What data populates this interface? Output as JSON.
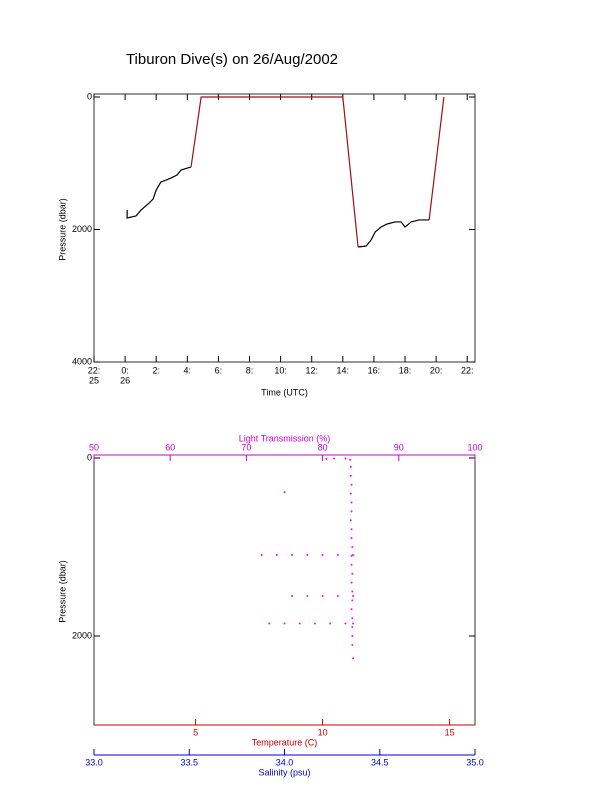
{
  "chart_data": [
    {
      "type": "line",
      "title": "Tiburon Dive(s) on 26/Aug/2002",
      "xlabel": "Time (UTC)",
      "ylabel": "Pressure (dbar)",
      "xlim": [
        -2,
        22.5
      ],
      "ylim": [
        4000,
        0
      ],
      "xticks": [
        {
          "value": -2,
          "label": "22:",
          "sublabel": "25"
        },
        {
          "value": 0,
          "label": "0:",
          "sublabel": "26"
        },
        {
          "value": 2,
          "label": "2:"
        },
        {
          "value": 4,
          "label": "4:"
        },
        {
          "value": 6,
          "label": "6:"
        },
        {
          "value": 8,
          "label": "8:"
        },
        {
          "value": 10,
          "label": "10:"
        },
        {
          "value": 12,
          "label": "12:"
        },
        {
          "value": 14,
          "label": "14:"
        },
        {
          "value": 16,
          "label": "16:"
        },
        {
          "value": 18,
          "label": "18:"
        },
        {
          "value": 20,
          "label": "20:"
        },
        {
          "value": 22,
          "label": "22:"
        }
      ],
      "yticks": [
        0,
        2000,
        4000
      ],
      "series": [
        {
          "color": "#000000",
          "x": [
            0.13,
            0.13,
            0.7,
            1.03,
            1.48,
            1.8,
            2.0,
            2.3,
            2.64,
            2.96,
            3.34,
            3.6,
            4.0,
            4.24,
            null,
            14.98,
            15.5,
            15.82,
            16.08,
            16.46,
            16.85,
            17.36,
            17.75,
            18.0,
            18.4,
            18.9,
            19.55
          ],
          "values": [
            1705,
            1826,
            1796,
            1705,
            1615,
            1540,
            1404,
            1283,
            1253,
            1222,
            1177,
            1102,
            1072,
            1057,
            null,
            2264,
            2249,
            2158,
            2037,
            1962,
            1917,
            1886,
            1886,
            1962,
            1886,
            1856,
            1856
          ]
        },
        {
          "color": "#a01010",
          "x": [
            4.24,
            4.89,
            14.0,
            14.98,
            null,
            19.55,
            20.5
          ],
          "values": [
            1057,
            0,
            0,
            2264,
            null,
            1856,
            0
          ]
        }
      ]
    },
    {
      "type": "scatter",
      "ylabel": "Pressure (dbar)",
      "ylim": [
        3000,
        0
      ],
      "yticks": [
        0,
        2000
      ],
      "xaxes": [
        {
          "position": "top",
          "label": "Light Transmission (%)",
          "color": "#cc00cc",
          "xlim": [
            50,
            100
          ],
          "xticks": [
            50,
            60,
            70,
            80,
            90,
            100
          ]
        },
        {
          "position": "bottom",
          "label": "Temperature (C)",
          "color": "#cc0000",
          "xlim": [
            1,
            16
          ],
          "xticks": [
            5,
            10,
            15
          ]
        },
        {
          "position": "bottom2",
          "label": "Salinity (psu)",
          "color": "#0000cc",
          "xlim": [
            33,
            35
          ],
          "xticks": [
            {
              "value": 33,
              "label": "33.0"
            },
            {
              "value": 33.5,
              "label": "33.5"
            },
            {
              "value": 34,
              "label": "34.0"
            },
            {
              "value": 34.5,
              "label": "34.5"
            },
            {
              "value": 35,
              "label": "35.0"
            }
          ]
        }
      ],
      "series": [
        {
          "color": "#ff00ff",
          "xaxis": 0,
          "x": [
            80.5,
            81.5,
            83,
            75,
            83.6,
            83.7,
            83.7,
            83.8,
            83.7,
            83.8,
            83.8,
            83.7,
            83.8,
            83.8,
            83.9,
            83.8,
            83.8,
            83.9,
            83.8,
            83.9,
            83.9,
            83.8,
            83.9,
            83.9,
            83.9,
            83.9,
            84,
            72,
            74,
            76,
            78,
            80,
            82,
            84,
            76,
            78,
            80,
            82,
            84,
            73,
            75,
            77,
            79,
            81,
            83,
            84
          ],
          "values": [
            10,
            5,
            5,
            385,
            20,
            100,
            200,
            300,
            400,
            500,
            600,
            700,
            800,
            900,
            1000,
            1100,
            1200,
            1300,
            1400,
            1500,
            1600,
            1700,
            1800,
            1900,
            2000,
            2100,
            2250,
            1090,
            1090,
            1090,
            1090,
            1090,
            1090,
            1090,
            1550,
            1550,
            1550,
            1550,
            1550,
            1860,
            1860,
            1860,
            1860,
            1860,
            1860,
            1860
          ]
        }
      ]
    }
  ]
}
